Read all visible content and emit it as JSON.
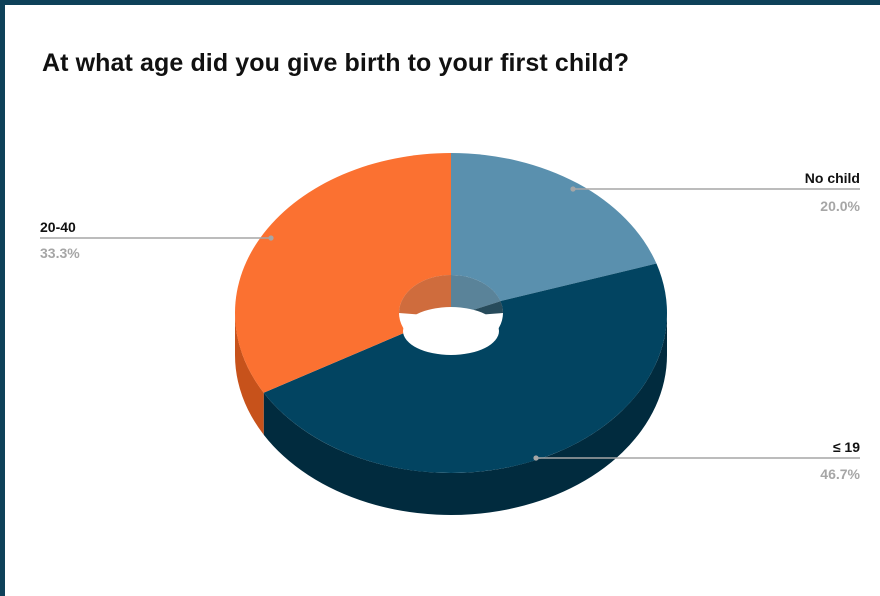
{
  "chart_data": {
    "type": "pie",
    "style": "3d-donut",
    "title": "At what age did you give birth to your first child?",
    "slices": [
      {
        "label": "No child",
        "value": 20.0,
        "value_label": "20.0%",
        "color": "#5a90ae",
        "side_color": "#3d6d87"
      },
      {
        "label": "≤ 19",
        "value": 46.7,
        "value_label": "46.7%",
        "color": "#024461",
        "side_color": "#012b3e"
      },
      {
        "label": "20-40",
        "value": 33.3,
        "value_label": "33.3%",
        "color": "#fb7131",
        "side_color": "#c7521b"
      }
    ],
    "legend": "none",
    "label_placement": "outside-with-leader-lines"
  },
  "colors": {
    "frame": "#0e4159",
    "background": "#ffffff",
    "label_name": "#111111",
    "label_value": "#a6a6a6",
    "leader_line": "#a6a6a6"
  }
}
